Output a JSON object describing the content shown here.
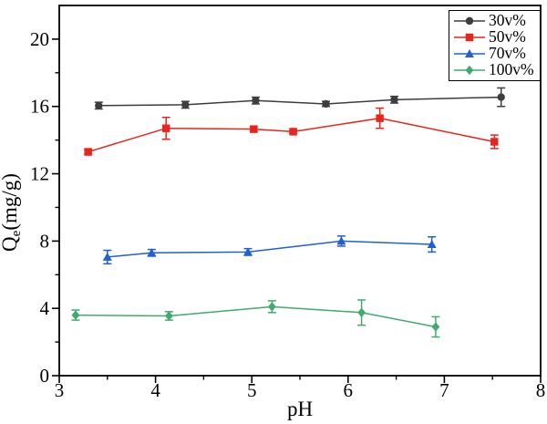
{
  "chart_data": {
    "type": "line",
    "title": "",
    "xlabel": "pH",
    "ylabel": {
      "base": "Q",
      "sub": "e",
      "rest": "(mg/g)"
    },
    "x_range": [
      3,
      8
    ],
    "y_range": [
      0,
      22
    ],
    "x_major_ticks": [
      3,
      4,
      5,
      6,
      7,
      8
    ],
    "x_minor_ticks": [
      3.5,
      4.5,
      5.5,
      6.5,
      7.5
    ],
    "y_major_ticks": [
      0,
      4,
      8,
      12,
      16,
      20
    ],
    "y_minor_ticks": [
      2,
      6,
      10,
      14,
      18
    ],
    "grid": false,
    "legend_position": "top-right",
    "axis_color": "#000000",
    "series": [
      {
        "name": "30v%",
        "color": "#3d3d3d",
        "marker": "circle",
        "points": [
          {
            "x": 3.41,
            "y": 16.05,
            "err": 0.2
          },
          {
            "x": 4.31,
            "y": 16.1,
            "err": 0.2
          },
          {
            "x": 5.04,
            "y": 16.35,
            "err": 0.2
          },
          {
            "x": 5.77,
            "y": 16.15,
            "err": 0.15
          },
          {
            "x": 6.48,
            "y": 16.4,
            "err": 0.2
          },
          {
            "x": 7.59,
            "y": 16.55,
            "err": 0.55
          }
        ]
      },
      {
        "name": "50v%",
        "color": "#e8251c",
        "marker": "square",
        "points": [
          {
            "x": 3.3,
            "y": 13.3,
            "err": 0.15
          },
          {
            "x": 4.11,
            "y": 14.7,
            "err": 0.65
          },
          {
            "x": 5.02,
            "y": 14.65,
            "err": 0.15
          },
          {
            "x": 5.43,
            "y": 14.5,
            "err": 0.1
          },
          {
            "x": 6.33,
            "y": 15.3,
            "err": 0.6
          },
          {
            "x": 7.52,
            "y": 13.9,
            "err": 0.4
          }
        ]
      },
      {
        "name": "70v%",
        "color": "#2060d0",
        "marker": "triangle",
        "points": [
          {
            "x": 3.5,
            "y": 7.05,
            "err": 0.4
          },
          {
            "x": 3.96,
            "y": 7.3,
            "err": 0.2
          },
          {
            "x": 4.96,
            "y": 7.35,
            "err": 0.2
          },
          {
            "x": 5.93,
            "y": 8.0,
            "err": 0.3
          },
          {
            "x": 6.87,
            "y": 7.8,
            "err": 0.45
          }
        ]
      },
      {
        "name": "100v%",
        "color": "#41ab6d",
        "marker": "diamond",
        "points": [
          {
            "x": 3.17,
            "y": 3.6,
            "err": 0.3
          },
          {
            "x": 4.14,
            "y": 3.55,
            "err": 0.25
          },
          {
            "x": 5.21,
            "y": 4.1,
            "err": 0.35
          },
          {
            "x": 6.14,
            "y": 3.75,
            "err": 0.75
          },
          {
            "x": 6.91,
            "y": 2.9,
            "err": 0.6
          }
        ]
      }
    ]
  }
}
